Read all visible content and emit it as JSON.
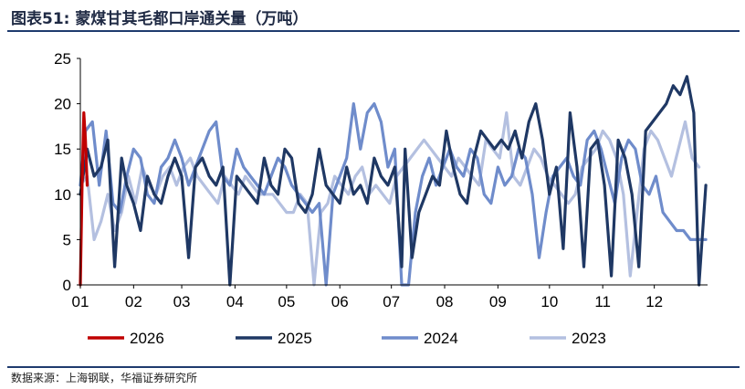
{
  "title": "图表51:  蒙煤甘其毛都口岸通关量（万吨）",
  "source": "数据来源：上海钢联，华福证券研究所",
  "chart_data": {
    "type": "line",
    "title": "图表51:  蒙煤甘其毛都口岸通关量（万吨）",
    "xlabel": "",
    "ylabel": "",
    "ylim": [
      0,
      25
    ],
    "yticks": [
      "0",
      "5",
      "10",
      "15",
      "20",
      "25"
    ],
    "xticks": [
      "01",
      "02",
      "03",
      "04",
      "05",
      "06",
      "07",
      "08",
      "09",
      "10",
      "11",
      "12"
    ],
    "x_unit": "day of year (1 = Jan 1)",
    "legend_position": "bottom",
    "grid": false,
    "series": [
      {
        "name": "2026",
        "color": "#c00000",
        "x": [
          1,
          2,
          3,
          4,
          5
        ],
        "y": [
          0,
          11,
          19,
          16,
          11
        ]
      },
      {
        "name": "2025",
        "color": "#1f3864",
        "x": [
          1,
          5,
          9,
          13,
          17,
          21,
          25,
          28,
          32,
          36,
          40,
          44,
          48,
          52,
          56,
          60,
          64,
          68,
          72,
          76,
          80,
          84,
          88,
          92,
          96,
          100,
          104,
          108,
          112,
          116,
          120,
          124,
          128,
          132,
          136,
          140,
          144,
          148,
          152,
          156,
          160,
          164,
          168,
          172,
          176,
          180,
          184,
          188,
          190,
          194,
          198,
          202,
          206,
          210,
          214,
          218,
          222,
          226,
          230,
          234,
          238,
          242,
          246,
          250,
          254,
          258,
          262,
          266,
          270,
          274,
          278,
          282,
          286,
          290,
          294,
          298,
          302,
          306,
          310,
          314,
          318,
          322,
          326,
          330,
          334,
          338,
          342,
          346,
          350,
          354,
          358,
          361,
          365
        ],
        "y": [
          10,
          15,
          12,
          13,
          16,
          2,
          14,
          11,
          9,
          6,
          12,
          10,
          9,
          12,
          14,
          12,
          3,
          13,
          14,
          12,
          11,
          13,
          0,
          12,
          11,
          10,
          9,
          14,
          11,
          10,
          15,
          14,
          9,
          8,
          10,
          15,
          11,
          10,
          9,
          13,
          10,
          11,
          9,
          14,
          12,
          11,
          13,
          2,
          15,
          3,
          8,
          10,
          12,
          11,
          17,
          13,
          10,
          9,
          14,
          17,
          16,
          15,
          16,
          15,
          17,
          14,
          18,
          20,
          16,
          10,
          13,
          4,
          19,
          13,
          2,
          15,
          16,
          11,
          1,
          16,
          14,
          10,
          2,
          17,
          18,
          19,
          20,
          22,
          21,
          23,
          19,
          0,
          11
        ]
      },
      {
        "name": "2024",
        "color": "#6f8ccb",
        "x": [
          1,
          4,
          8,
          12,
          16,
          20,
          24,
          28,
          32,
          36,
          40,
          44,
          48,
          52,
          56,
          60,
          64,
          68,
          72,
          76,
          80,
          84,
          88,
          92,
          96,
          100,
          104,
          108,
          112,
          116,
          120,
          124,
          128,
          132,
          136,
          140,
          144,
          148,
          152,
          156,
          160,
          164,
          168,
          172,
          176,
          180,
          184,
          188,
          192,
          196,
          200,
          204,
          208,
          212,
          216,
          220,
          224,
          228,
          232,
          236,
          240,
          244,
          248,
          252,
          256,
          260,
          264,
          268,
          272,
          276,
          280,
          284,
          288,
          292,
          296,
          300,
          304,
          308,
          312,
          316,
          320,
          324,
          328,
          332,
          336,
          340,
          344,
          348,
          352,
          356,
          360,
          365
        ],
        "y": [
          11,
          17,
          18,
          11,
          17,
          9,
          8,
          12,
          15,
          14,
          10,
          9,
          13,
          14,
          16,
          14,
          11,
          13,
          15,
          17,
          18,
          12,
          11,
          15,
          13,
          12,
          11,
          10,
          12,
          14,
          13,
          11,
          10,
          9,
          8,
          9,
          0,
          10,
          12,
          14,
          20,
          15,
          19,
          20,
          18,
          13,
          15,
          0,
          0,
          8,
          12,
          14,
          11,
          13,
          15,
          13,
          12,
          15,
          14,
          10,
          9,
          13,
          11,
          12,
          15,
          14,
          10,
          3,
          8,
          12,
          13,
          14,
          12,
          11,
          16,
          17,
          15,
          12,
          9,
          14,
          16,
          15,
          11,
          10,
          12,
          8,
          7,
          6,
          6,
          5,
          5,
          5
        ]
      },
      {
        "name": "2023",
        "color": "#b4c0e0",
        "x": [
          1,
          5,
          9,
          13,
          17,
          21,
          25,
          29,
          33,
          37,
          41,
          45,
          49,
          53,
          57,
          61,
          65,
          69,
          73,
          77,
          81,
          85,
          89,
          93,
          97,
          101,
          105,
          109,
          113,
          117,
          121,
          125,
          129,
          133,
          137,
          141,
          145,
          149,
          153,
          157,
          161,
          165,
          169,
          173,
          177,
          181,
          185,
          189,
          193,
          197,
          201,
          205,
          209,
          213,
          217,
          221,
          225,
          229,
          233,
          237,
          241,
          245,
          249,
          253,
          257,
          261,
          265,
          269,
          273,
          277,
          281,
          285,
          289,
          293,
          297,
          301,
          305,
          309,
          313,
          317,
          321,
          325,
          329,
          333,
          337,
          341,
          345,
          349,
          353,
          357,
          361
        ],
        "y": [
          11,
          12,
          5,
          7,
          10,
          6,
          8,
          12,
          9,
          13,
          11,
          10,
          12,
          13,
          11,
          13,
          14,
          12,
          11,
          10,
          9,
          12,
          11,
          10,
          12,
          11,
          10,
          10,
          10,
          9,
          8,
          8,
          10,
          9,
          0,
          8,
          9,
          12,
          11,
          10,
          12,
          13,
          10,
          11,
          10,
          9,
          12,
          13,
          14,
          15,
          16,
          15,
          14,
          13,
          12,
          14,
          13,
          12,
          11,
          16,
          15,
          14,
          19,
          12,
          11,
          13,
          15,
          14,
          12,
          11,
          10,
          9,
          10,
          13,
          14,
          15,
          17,
          16,
          14,
          10,
          1,
          8,
          15,
          17,
          16,
          14,
          12,
          15,
          18,
          14,
          13
        ]
      }
    ]
  }
}
